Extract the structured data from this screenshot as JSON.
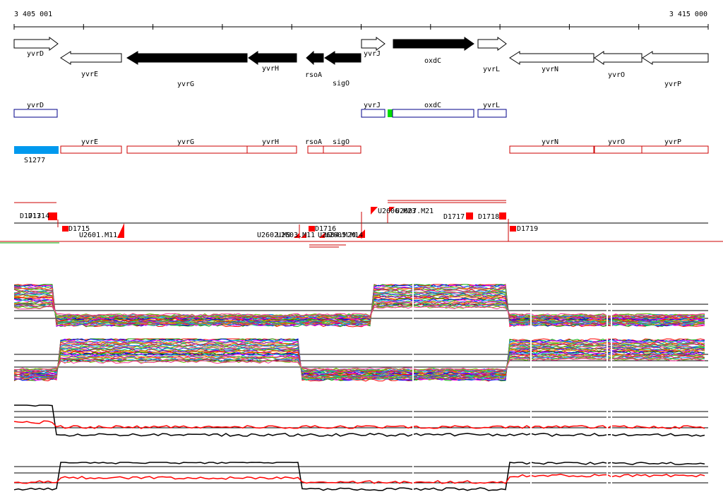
{
  "coordinates": {
    "start_label": "3 405 001",
    "end_label": "3 415 000"
  },
  "genes": [
    {
      "label": "yvrD",
      "strand": "+",
      "filled": false
    },
    {
      "label": "yvrE",
      "strand": "-",
      "filled": false
    },
    {
      "label": "yvrG",
      "strand": "-",
      "filled": true
    },
    {
      "label": "yvrH",
      "strand": "-",
      "filled": true
    },
    {
      "label": "rsoA",
      "strand": "-",
      "filled": true
    },
    {
      "label": "sigO",
      "strand": "-",
      "filled": true
    },
    {
      "label": "yvrJ",
      "strand": "+",
      "filled": false
    },
    {
      "label": "oxdC",
      "strand": "+",
      "filled": true
    },
    {
      "label": "yvrL",
      "strand": "+",
      "filled": false
    },
    {
      "label": "yvrN",
      "strand": "-",
      "filled": false
    },
    {
      "label": "yvrO",
      "strand": "-",
      "filled": false
    },
    {
      "label": "yvrP",
      "strand": "-",
      "filled": false
    }
  ],
  "forward_features": [
    {
      "label": "yvrD"
    },
    {
      "label": "yvrJ"
    },
    {
      "label": "oxdC"
    },
    {
      "label": "yvrL"
    }
  ],
  "reverse_features": [
    {
      "label": "yvrE"
    },
    {
      "label": "yvrG"
    },
    {
      "label": "yvrH"
    },
    {
      "label": "rsoA"
    },
    {
      "label": "sigO"
    },
    {
      "label": "yvrN"
    },
    {
      "label": "yvrO"
    },
    {
      "label": "yvrP"
    }
  ],
  "blue_feature": {
    "label": "S1277",
    "color": "#0099ee"
  },
  "colors": {
    "forward_track": "#000088",
    "reverse_track": "#cc0000",
    "marker": "#ff0000",
    "green_mark": "#00dd00"
  },
  "transcript_labels": [
    {
      "label": "D1713"
    },
    {
      "label": "D1714"
    },
    {
      "label": "D1715"
    },
    {
      "label": "U2601.M11"
    },
    {
      "label": "U2602.M9"
    },
    {
      "label": "U2603.M11"
    },
    {
      "label": "D1716"
    },
    {
      "label": "U2604.M20"
    },
    {
      "label": "U2605.M14"
    },
    {
      "label": "U2606.M23"
    },
    {
      "label": "U2607.M21"
    },
    {
      "label": "D1717"
    },
    {
      "label": "D1718"
    },
    {
      "label": "D1719"
    }
  ]
}
